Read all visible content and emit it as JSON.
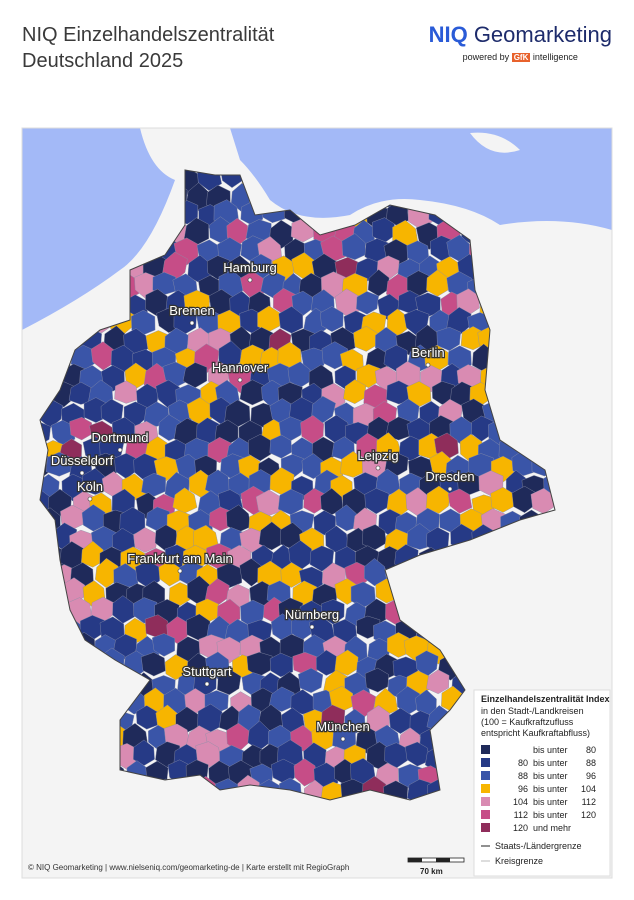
{
  "header": {
    "title_line1": "NIQ Einzelhandelszentralität",
    "title_line2": "Deutschland 2025",
    "logo_brand": "NIQ",
    "logo_name": "Geomarketing",
    "logo_powered": "powered by",
    "logo_gfk": "GfK",
    "logo_intelligence": "intelligence"
  },
  "cities": [
    "Hamburg",
    "Bremen",
    "Berlin",
    "Hannover",
    "Dortmund",
    "Düsseldorf",
    "Köln",
    "Leipzig",
    "Dresden",
    "Frankfurt am Main",
    "Nürnberg",
    "Stuttgart",
    "München"
  ],
  "legend": {
    "title": "Einzelhandelszentralität Index",
    "subtitle1": "in den Stadt-/Landkreisen",
    "subtitle2": "(100 = Kaufkraftzufluss",
    "subtitle3": "entspricht Kaufkraftabfluss)",
    "rows": [
      {
        "relation": "bis unter",
        "to": 80,
        "color": "#1f2a5a"
      },
      {
        "from": 80,
        "relation": "bis unter",
        "to": 88,
        "color": "#263a86"
      },
      {
        "from": 88,
        "relation": "bis unter",
        "to": 96,
        "color": "#3a55a8"
      },
      {
        "from": 96,
        "relation": "bis unter",
        "to": 104,
        "color": "#f7b500"
      },
      {
        "from": 104,
        "relation": "bis unter",
        "to": 112,
        "color": "#d98bb2"
      },
      {
        "from": 112,
        "relation": "bis unter",
        "to": 120,
        "color": "#c64d87"
      },
      {
        "from": 120,
        "relation": "und mehr",
        "color": "#8f2d5b"
      }
    ],
    "border_state": "Staats-/Ländergrenze",
    "border_district": "Kreisgrenze"
  },
  "footer": "© NIQ Geomarketing | www.nielseniq.com/geomarketing-de | Karte erstellt mit RegioGraph",
  "scale": "70 km"
}
